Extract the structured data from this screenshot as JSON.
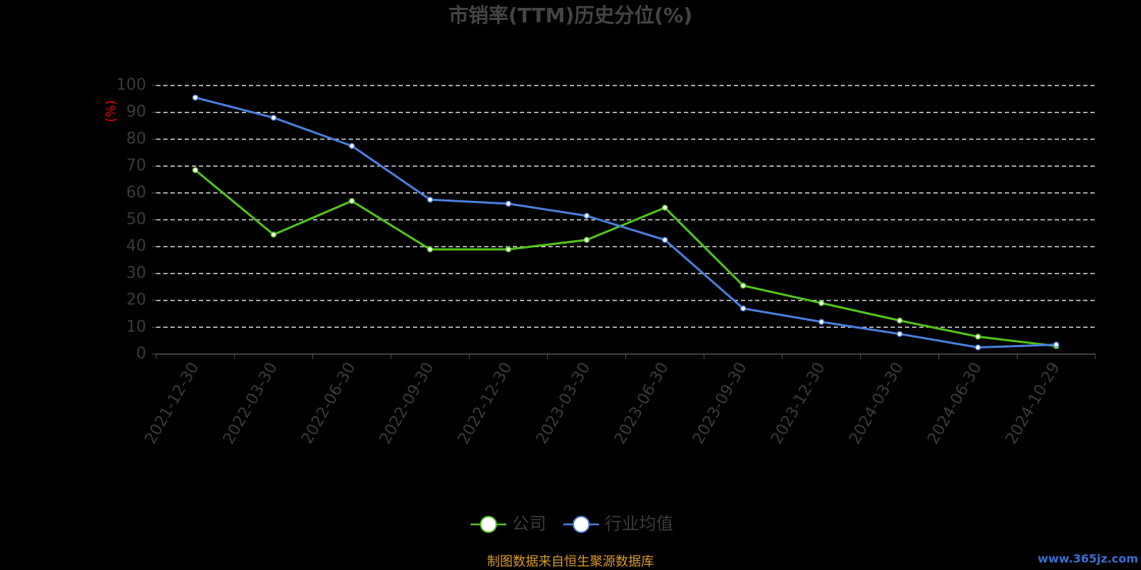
{
  "chart_data": {
    "type": "line",
    "title": "市销率(TTM)历史分位(%)",
    "y_label": "(%)",
    "categories": [
      "2021-12-30",
      "2022-03-30",
      "2022-06-30",
      "2022-09-30",
      "2022-12-30",
      "2023-03-30",
      "2023-06-30",
      "2023-09-30",
      "2023-12-30",
      "2024-03-30",
      "2024-06-30",
      "2024-10-29"
    ],
    "series": [
      {
        "name": "公司",
        "color": "#52c41a",
        "values": [
          68.5,
          44.5,
          57,
          39,
          39,
          42.5,
          54.5,
          25.5,
          19,
          12.5,
          6.5,
          3
        ]
      },
      {
        "name": "行业均值",
        "color": "#4a7fdc",
        "values": [
          95.5,
          88,
          77.5,
          57.5,
          56,
          51.5,
          42.5,
          17,
          12,
          7.5,
          2.5,
          3.5
        ]
      }
    ],
    "ylim": [
      0,
      100
    ],
    "yticks": [
      0,
      10,
      20,
      30,
      40,
      50,
      60,
      70,
      80,
      90,
      100
    ],
    "grid": true,
    "source": "制图数据来自恒生聚源数据库",
    "watermark": "www.365jz.com"
  }
}
